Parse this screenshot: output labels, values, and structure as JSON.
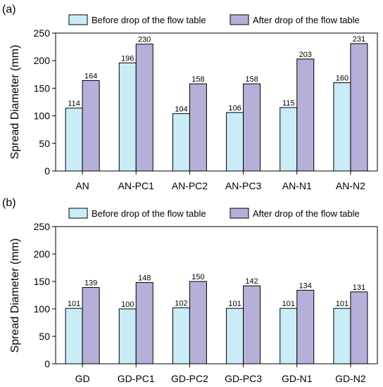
{
  "colors": {
    "before": "#c9ecf6",
    "after": "#b4b0d9",
    "stroke": "#000000"
  },
  "chart_data": [
    {
      "type": "bar",
      "panel_label": "(a)",
      "ylabel": "Spread Diameter (mm)",
      "ylim": [
        0,
        250
      ],
      "yticks": [
        0,
        50,
        100,
        150,
        200,
        250
      ],
      "legend_position": "top",
      "categories": [
        "AN",
        "AN-PC1",
        "AN-PC2",
        "AN-PC3",
        "AN-N1",
        "AN-N2"
      ],
      "series": [
        {
          "name": "Before drop of the flow table",
          "values": [
            114,
            196,
            104,
            106,
            115,
            160
          ]
        },
        {
          "name": "After drop of the flow table",
          "values": [
            164,
            230,
            158,
            158,
            203,
            231
          ]
        }
      ]
    },
    {
      "type": "bar",
      "panel_label": "(b)",
      "ylabel": "Spread Diameter (mm)",
      "ylim": [
        0,
        250
      ],
      "yticks": [
        0,
        50,
        100,
        150,
        200,
        250
      ],
      "legend_position": "top",
      "categories": [
        "GD",
        "GD-PC1",
        "GD-PC2",
        "GD-PC3",
        "GD-N1",
        "GD-N2"
      ],
      "series": [
        {
          "name": "Before drop of the flow table",
          "values": [
            101,
            100,
            102,
            101,
            101,
            101
          ]
        },
        {
          "name": "After drop of the flow table",
          "values": [
            139,
            148,
            150,
            142,
            134,
            131
          ]
        }
      ]
    }
  ]
}
